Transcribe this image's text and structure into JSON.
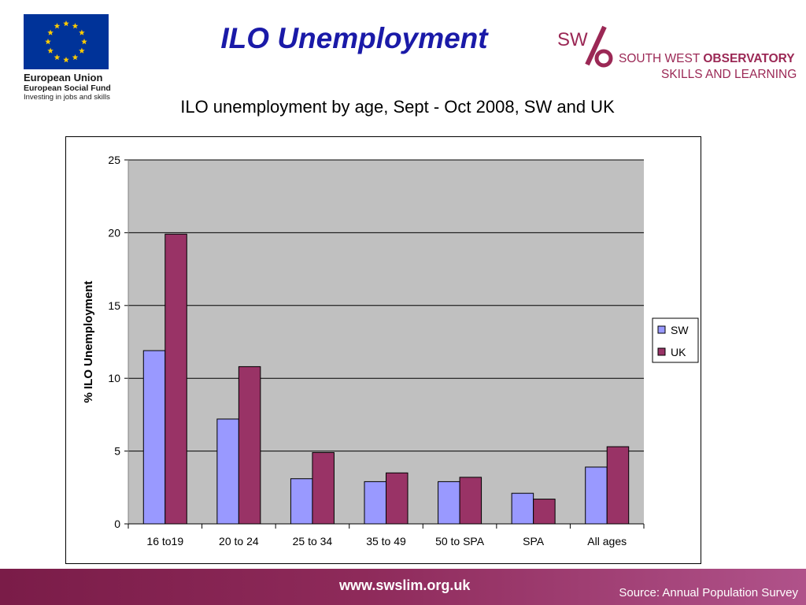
{
  "header": {
    "title": "ILO Unemployment",
    "eu_logo": {
      "line1": "European Union",
      "line2": "European Social Fund",
      "line3": "Investing in jobs and skills",
      "flag_color": "#003399",
      "star_color": "#ffcc00"
    },
    "sw_logo": {
      "mark": "SW",
      "name_regular": "SOUTH WEST ",
      "name_bold": "OBSERVATORY",
      "subtitle": "SKILLS AND LEARNING",
      "color": "#9b2855"
    }
  },
  "chart_data": {
    "type": "bar",
    "title": "ILO unemployment by age, Sept - Oct 2008, SW and UK",
    "ylabel": "% ILO Unemployment",
    "xlabel": "",
    "ylim": [
      0,
      25
    ],
    "yticks": [
      "0",
      "5",
      "10",
      "15",
      "20",
      "25"
    ],
    "grid": true,
    "legend": "right",
    "categories": [
      "16 to19",
      "20 to 24",
      "25 to 34",
      "35 to 49",
      "50 to SPA",
      "SPA",
      "All ages"
    ],
    "series": [
      {
        "name": "SW",
        "color": "#9999ff",
        "values": [
          11.9,
          7.2,
          3.1,
          2.9,
          2.9,
          2.1,
          3.9
        ]
      },
      {
        "name": "UK",
        "color": "#993366",
        "values": [
          19.9,
          10.8,
          4.9,
          3.5,
          3.2,
          1.7,
          5.3
        ]
      }
    ]
  },
  "footer": {
    "url": "www.swslim.org.uk",
    "source": "Source: Annual Population Survey"
  }
}
